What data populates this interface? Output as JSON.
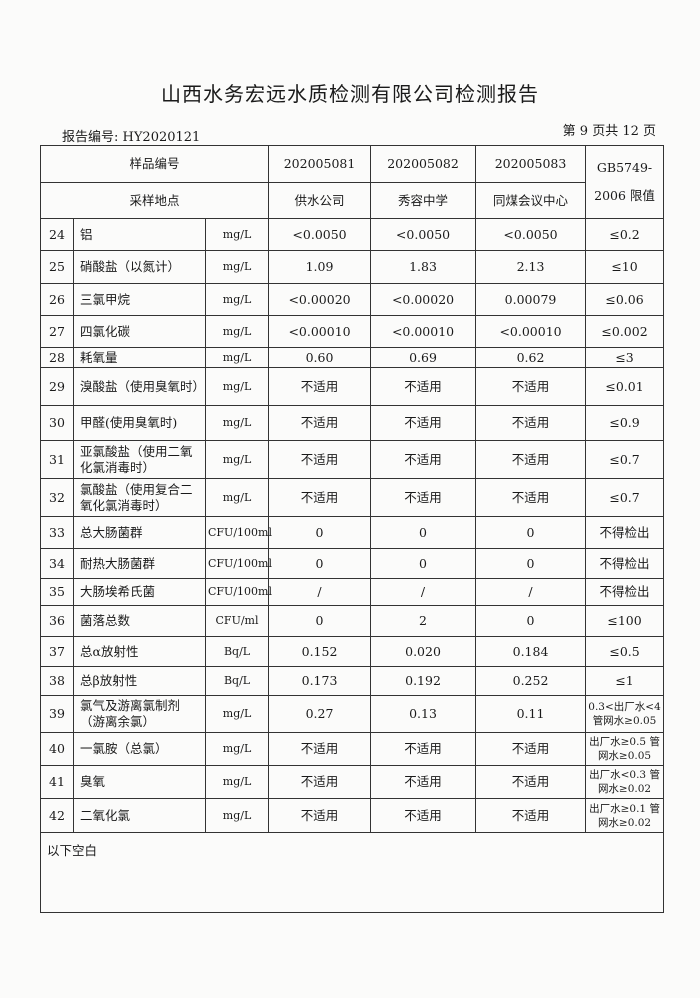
{
  "title": "山西水务宏远水质检测有限公司检测报告",
  "report_no": "报告编号: HY2020121",
  "page_no": "第 9 页共 12 页",
  "header": {
    "sample_no_label": "样品编号",
    "site_label": "采样地点",
    "limit_label_1": "GB5749-",
    "limit_label_2": "2006 限值",
    "samples": [
      {
        "no": "202005081",
        "site": "供水公司"
      },
      {
        "no": "202005082",
        "site": "秀容中学"
      },
      {
        "no": "202005083",
        "site": "同煤会议中心"
      }
    ]
  },
  "rows": [
    {
      "n": "24",
      "item": "铝",
      "unit": "mg/L",
      "v": [
        "<0.0050",
        "<0.0050",
        "<0.0050"
      ],
      "limit": "≤0.2"
    },
    {
      "n": "25",
      "item": "硝酸盐（以氮计）",
      "unit": "mg/L",
      "v": [
        "1.09",
        "1.83",
        "2.13"
      ],
      "limit": "≤10"
    },
    {
      "n": "26",
      "item": "三氯甲烷",
      "unit": "mg/L",
      "v": [
        "<0.00020",
        "<0.00020",
        "0.00079"
      ],
      "limit": "≤0.06"
    },
    {
      "n": "27",
      "item": "四氯化碳",
      "unit": "mg/L",
      "v": [
        "<0.00010",
        "<0.00010",
        "<0.00010"
      ],
      "limit": "≤0.002"
    },
    {
      "n": "28",
      "item": "耗氧量",
      "unit": "mg/L",
      "v": [
        "0.60",
        "0.69",
        "0.62"
      ],
      "limit": "≤3"
    },
    {
      "n": "29",
      "item": "溴酸盐（使用臭氧时）",
      "unit": "mg/L",
      "v": [
        "不适用",
        "不适用",
        "不适用"
      ],
      "limit": "≤0.01"
    },
    {
      "n": "30",
      "item": "甲醛(使用臭氧时)",
      "unit": "mg/L",
      "v": [
        "不适用",
        "不适用",
        "不适用"
      ],
      "limit": "≤0.9"
    },
    {
      "n": "31",
      "item": "亚氯酸盐（使用二氧化氯消毒时）",
      "unit": "mg/L",
      "v": [
        "不适用",
        "不适用",
        "不适用"
      ],
      "limit": "≤0.7"
    },
    {
      "n": "32",
      "item": "氯酸盐（使用复合二氧化氯消毒时）",
      "unit": "mg/L",
      "v": [
        "不适用",
        "不适用",
        "不适用"
      ],
      "limit": "≤0.7"
    },
    {
      "n": "33",
      "item": "总大肠菌群",
      "unit": "CFU/100ml",
      "v": [
        "0",
        "0",
        "0"
      ],
      "limit": "不得检出"
    },
    {
      "n": "34",
      "item": "耐热大肠菌群",
      "unit": "CFU/100ml",
      "v": [
        "0",
        "0",
        "0"
      ],
      "limit": "不得检出"
    },
    {
      "n": "35",
      "item": "大肠埃希氏菌",
      "unit": "CFU/100ml",
      "v": [
        "/",
        "/",
        "/"
      ],
      "limit": "不得检出"
    },
    {
      "n": "36",
      "item": "菌落总数",
      "unit": "CFU/ml",
      "v": [
        "0",
        "2",
        "0"
      ],
      "limit": "≤100"
    },
    {
      "n": "37",
      "item": "总α放射性",
      "unit": "Bq/L",
      "v": [
        "0.152",
        "0.020",
        "0.184"
      ],
      "limit": "≤0.5"
    },
    {
      "n": "38",
      "item": "总β放射性",
      "unit": "Bq/L",
      "v": [
        "0.173",
        "0.192",
        "0.252"
      ],
      "limit": "≤1"
    },
    {
      "n": "39",
      "item": "氯气及游离氯制剂（游离余氯）",
      "unit": "mg/L",
      "v": [
        "0.27",
        "0.13",
        "0.11"
      ],
      "limit": "0.3<出厂水<4 管网水≥0.05"
    },
    {
      "n": "40",
      "item": "一氯胺（总氯）",
      "unit": "mg/L",
      "v": [
        "不适用",
        "不适用",
        "不适用"
      ],
      "limit": "出厂水≥0.5 管网水≥0.05"
    },
    {
      "n": "41",
      "item": "臭氧",
      "unit": "mg/L",
      "v": [
        "不适用",
        "不适用",
        "不适用"
      ],
      "limit": "出厂水<0.3 管网水≥0.02"
    },
    {
      "n": "42",
      "item": "二氧化氯",
      "unit": "mg/L",
      "v": [
        "不适用",
        "不适用",
        "不适用"
      ],
      "limit": "出厂水≥0.1 管网水≥0.02"
    }
  ],
  "footer_note": "以下空白"
}
